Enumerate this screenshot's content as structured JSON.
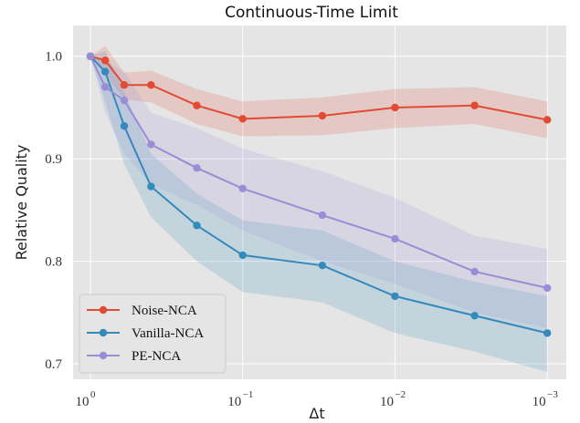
{
  "chart_data": {
    "type": "line",
    "title": "Continuous-Time Limit",
    "xlabel": "Δt",
    "ylabel": "Relative Quality",
    "x_scale": "log-reversed",
    "x_ticks": [
      {
        "base": "10",
        "exp": "0"
      },
      {
        "base": "10",
        "exp": "−1"
      },
      {
        "base": "10",
        "exp": "−2"
      },
      {
        "base": "10",
        "exp": "−3"
      }
    ],
    "y_ticks": [
      "1.0",
      "0.9",
      "0.8",
      "0.7"
    ],
    "ylim": [
      0.685,
      1.03
    ],
    "xlim": [
      1.3,
      0.00075
    ],
    "x": [
      1.0,
      0.8,
      0.6,
      0.4,
      0.2,
      0.1,
      0.03,
      0.01,
      0.003,
      0.001
    ],
    "grid": true,
    "legend_position": "lower-left",
    "series": [
      {
        "name": "Noise-NCA",
        "color": "#e24a33",
        "values": [
          1.0,
          0.996,
          0.972,
          0.972,
          0.952,
          0.939,
          0.942,
          0.95,
          0.952,
          0.938
        ],
        "band_low": [
          1.0,
          0.982,
          0.958,
          0.955,
          0.934,
          0.922,
          0.923,
          0.93,
          0.934,
          0.92
        ],
        "band_high": [
          1.0,
          1.01,
          0.984,
          0.986,
          0.968,
          0.956,
          0.96,
          0.968,
          0.97,
          0.956
        ]
      },
      {
        "name": "Vanilla-NCA",
        "color": "#348abd",
        "values": [
          1.0,
          0.985,
          0.932,
          0.873,
          0.835,
          0.806,
          0.796,
          0.766,
          0.747,
          0.73
        ],
        "band_low": [
          1.0,
          0.955,
          0.895,
          0.843,
          0.8,
          0.77,
          0.76,
          0.73,
          0.712,
          0.692
        ],
        "band_high": [
          1.0,
          1.005,
          0.965,
          0.905,
          0.866,
          0.84,
          0.83,
          0.8,
          0.78,
          0.766
        ]
      },
      {
        "name": "PE-NCA",
        "color": "#988ed5",
        "values": [
          1.0,
          0.97,
          0.957,
          0.914,
          0.891,
          0.871,
          0.845,
          0.822,
          0.79,
          0.774
        ],
        "band_low": [
          1.0,
          0.945,
          0.905,
          0.875,
          0.855,
          0.83,
          0.8,
          0.778,
          0.75,
          0.735
        ],
        "band_high": [
          1.0,
          0.995,
          0.985,
          0.945,
          0.93,
          0.91,
          0.888,
          0.862,
          0.825,
          0.812
        ]
      }
    ]
  }
}
